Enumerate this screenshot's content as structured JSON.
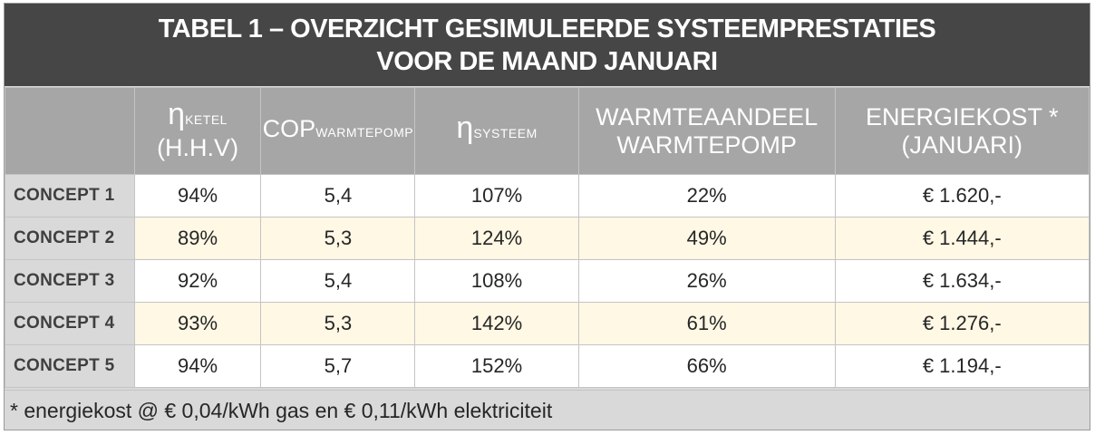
{
  "title": {
    "line1": "TABEL 1 – OVERZICHT GESIMULEERDE SYSTEEMPRESTATIES",
    "line2": "VOOR DE MAAND JANUARI"
  },
  "headers": {
    "eta_ketel": {
      "symbol": "η",
      "subscript": "KETEL",
      "line2": "(H.H.V)"
    },
    "cop": {
      "base": "COP",
      "subscript": "WARMTEPOMP"
    },
    "eta_systeem": {
      "symbol": "η",
      "subscript": "SYSTEEM"
    },
    "warmteaandeel": {
      "line1": "WARMTEAANDEEL",
      "line2": "WARMTEPOMP"
    },
    "energiekost": {
      "line1": "ENERGIEKOST *",
      "line2": "(JANUARI)"
    }
  },
  "rows": [
    {
      "label": "CONCEPT 1",
      "eta_ketel": "94%",
      "cop": "5,4",
      "eta_systeem": "107%",
      "warmteaandeel": "22%",
      "energiekost": "€ 1.620,-"
    },
    {
      "label": "CONCEPT 2",
      "eta_ketel": "89%",
      "cop": "5,3",
      "eta_systeem": "124%",
      "warmteaandeel": "49%",
      "energiekost": "€ 1.444,-"
    },
    {
      "label": "CONCEPT 3",
      "eta_ketel": "92%",
      "cop": "5,4",
      "eta_systeem": "108%",
      "warmteaandeel": "26%",
      "energiekost": "€ 1.634,-"
    },
    {
      "label": "CONCEPT 4",
      "eta_ketel": "93%",
      "cop": "5,3",
      "eta_systeem": "142%",
      "warmteaandeel": "61%",
      "energiekost": "€ 1.276,-"
    },
    {
      "label": "CONCEPT 5",
      "eta_ketel": "94%",
      "cop": "5,7",
      "eta_systeem": "152%",
      "warmteaandeel": "66%",
      "energiekost": "€ 1.194,-"
    }
  ],
  "footnote": "* energiekost @ € 0,04/kWh gas en € 0,11/kWh elektriciteit",
  "colors": {
    "title_background": "#464646",
    "header_background": "#a6a6a6",
    "row_label_background": "#d9d9d9",
    "alternate_row_background": "#fff8e5"
  }
}
